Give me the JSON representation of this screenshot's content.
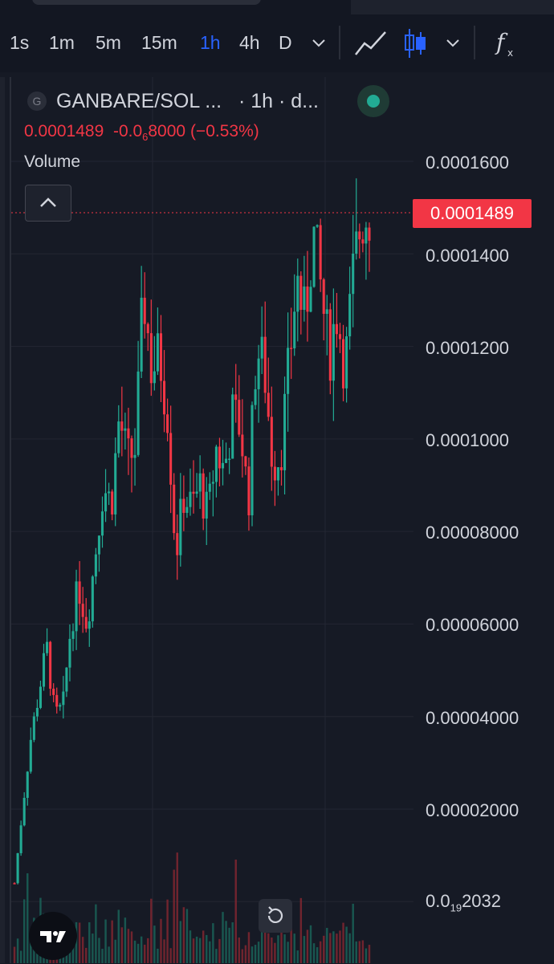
{
  "toolbar": {
    "timeframes": [
      "1s",
      "1m",
      "5m",
      "15m",
      "1h",
      "4h",
      "D"
    ],
    "active_timeframe": "1h",
    "icons": [
      "chevron-down-icon",
      "line-chart-icon",
      "candlestick-icon",
      "chevron-down-icon",
      "function-icon"
    ]
  },
  "legend": {
    "icon_letter": "G",
    "symbol": "GANBARE/SOL ...",
    "interval": "· 1h · d...",
    "price": "0.0001489",
    "change_prefix": "-0.0",
    "change_sub": "6",
    "change_suffix": "8000",
    "change_pct": "(−0.53%)",
    "volume_label": "Volume"
  },
  "price_axis": {
    "labels": [
      "0.0001600",
      "0.0001400",
      "0.0001200",
      "0.0001000",
      "0.00008000",
      "0.00006000",
      "0.00004000",
      "0.00002000"
    ],
    "bottom_label_prefix": "0.0",
    "bottom_label_sub": "19",
    "bottom_label_suffix": "2032",
    "current_price_tag": "0.0001489"
  },
  "colors": {
    "background": "#161a25",
    "up": "#22ab94",
    "down": "#f23645",
    "accent": "#2962ff",
    "grid": "#232632",
    "text": "#d1d4dc"
  },
  "chart_data": {
    "type": "candlestick",
    "interval": "1h",
    "pair": "GANBARE/SOL",
    "current_price": 0.0001489,
    "ylim": [
      0,
      0.00017
    ],
    "close_series": [
      4e-06,
      2e-05,
      3.5e-05,
      4.5e-05,
      5.5e-05,
      4e-05,
      4.2e-05,
      6e-05,
      6.8e-05,
      6e-05,
      7.5e-05,
      9e-05,
      8.6e-05,
      0.000105,
      9.5e-05,
      9.8e-05,
      0.000132,
      0.000115,
      0.000118,
      0.000106,
      7.5e-05,
      8.8e-05,
      8.5e-05,
      9e-05,
      8.3e-05,
      9.8e-05,
      9.3e-05,
      0.000105,
      0.000103,
      8.6e-05,
      0.00012,
      0.000115,
      9.5e-05,
      9.7e-05,
      0.000115,
      0.000135,
      0.000125,
      0.000145,
      0.000132,
      0.000118,
      0.000128,
      0.000115,
      0.000135,
      0.000148,
      0.0001489
    ],
    "volume": [
      0.3,
      0.8,
      0.4,
      0.6,
      0.5,
      0.3,
      0.4,
      0.5,
      0.3,
      0.4,
      0.6,
      0.4,
      0.3,
      0.5,
      0.4,
      0.3,
      0.5,
      0.6,
      0.3,
      0.4,
      1.0,
      0.5,
      0.4,
      0.3,
      0.4,
      0.3,
      0.5,
      0.4,
      0.3,
      0.4,
      0.3,
      0.4,
      0.5,
      0.3,
      0.4,
      0.3,
      0.5,
      0.4,
      0.3,
      0.4,
      0.3,
      0.4,
      0.3,
      0.4,
      0.3
    ]
  }
}
